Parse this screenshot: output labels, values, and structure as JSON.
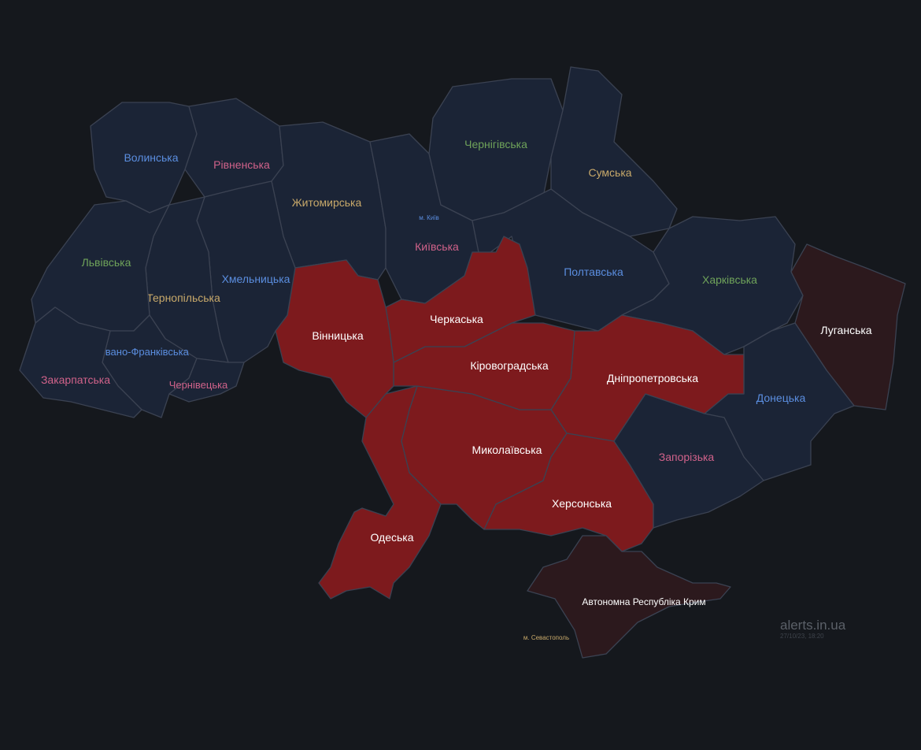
{
  "map": {
    "status_colors": {
      "normal": "#1b2436",
      "alert": "#7d1a1d",
      "occupied": "#2c191d"
    },
    "label_colors": {
      "blue": "#5b8ee0",
      "pink": "#d0628a",
      "green": "#6fa35a",
      "yellow": "#c8a96a",
      "white": "#ffffff"
    },
    "regions": {
      "volyn": {
        "name": "Волинська",
        "status": "normal",
        "label_color": "blue"
      },
      "rivne": {
        "name": "Рівненська",
        "status": "normal",
        "label_color": "pink"
      },
      "zhytomyr": {
        "name": "Житомирська",
        "status": "normal",
        "label_color": "yellow"
      },
      "kyiv_oblast": {
        "name": "Київська",
        "status": "normal",
        "label_color": "pink"
      },
      "kyiv_city": {
        "name": "м. Київ",
        "status": "normal",
        "label_color": "blue"
      },
      "chernihiv": {
        "name": "Чернігівська",
        "status": "normal",
        "label_color": "green"
      },
      "sumy": {
        "name": "Сумська",
        "status": "normal",
        "label_color": "yellow"
      },
      "poltava": {
        "name": "Полтавська",
        "status": "normal",
        "label_color": "blue"
      },
      "kharkiv": {
        "name": "Харківська",
        "status": "normal",
        "label_color": "green"
      },
      "luhansk": {
        "name": "Луганська",
        "status": "occupied",
        "label_color": "white"
      },
      "donetsk": {
        "name": "Донецька",
        "status": "normal",
        "label_color": "blue"
      },
      "dnipro": {
        "name": "Дніпропетровська",
        "status": "alert",
        "label_color": "white"
      },
      "zaporizhzhia": {
        "name": "Запорізька",
        "status": "normal",
        "label_color": "pink"
      },
      "kherson": {
        "name": "Херсонська",
        "status": "alert",
        "label_color": "white"
      },
      "crimea": {
        "name": "Автономна Республіка Крим",
        "status": "occupied",
        "label_color": "white"
      },
      "sevastopol": {
        "name": "м. Севастополь",
        "status": "occupied",
        "label_color": "yellow"
      },
      "mykolaiv": {
        "name": "Миколаївська",
        "status": "alert",
        "label_color": "white"
      },
      "odesa": {
        "name": "Одеська",
        "status": "alert",
        "label_color": "white"
      },
      "kirovohrad": {
        "name": "Кіровоградська",
        "status": "alert",
        "label_color": "white"
      },
      "cherkasy": {
        "name": "Черкаська",
        "status": "alert",
        "label_color": "white"
      },
      "vinnytsia": {
        "name": "Вінницька",
        "status": "alert",
        "label_color": "white"
      },
      "khmelnytskyi": {
        "name": "Хмельницька",
        "status": "normal",
        "label_color": "blue"
      },
      "ternopil": {
        "name": "Тернопільська",
        "status": "normal",
        "label_color": "yellow"
      },
      "lviv": {
        "name": "Львівська",
        "status": "normal",
        "label_color": "green"
      },
      "ivano_frankivsk": {
        "name": "Івано-Франківська",
        "status": "normal",
        "label_color": "blue"
      },
      "zakarpattia": {
        "name": "Закарпатська",
        "status": "normal",
        "label_color": "pink"
      },
      "chernivtsi": {
        "name": "Чернівецька",
        "status": "normal",
        "label_color": "pink"
      }
    }
  },
  "watermark": {
    "brand": "alerts.in.ua",
    "timestamp": "27/10/23, 18:20"
  }
}
